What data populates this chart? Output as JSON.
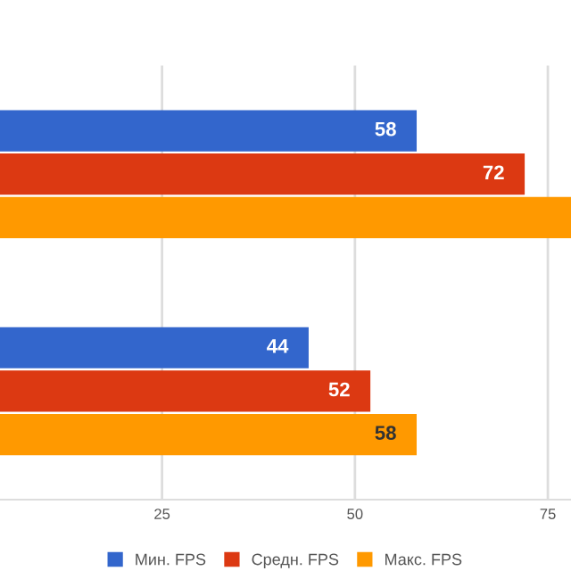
{
  "chart_data": {
    "type": "bar",
    "orientation": "horizontal",
    "categories": [
      null,
      null
    ],
    "series": [
      {
        "name": "Мин. FPS",
        "color": "#3366cc",
        "values": [
          58,
          44
        ],
        "value_labels": [
          "58",
          "44"
        ]
      },
      {
        "name": "Средн. FPS",
        "color": "#dc3912",
        "values": [
          72,
          52
        ],
        "value_labels": [
          "72",
          "52"
        ]
      },
      {
        "name": "Макс. FPS",
        "color": "#ff9900",
        "values": [
          78,
          58
        ],
        "value_labels": [
          null,
          "58"
        ]
      }
    ],
    "xlim": [
      4,
      78
    ],
    "xticks": [
      25,
      50,
      75
    ],
    "grid": "x",
    "legend": "bottom",
    "tick_labels": "x"
  }
}
